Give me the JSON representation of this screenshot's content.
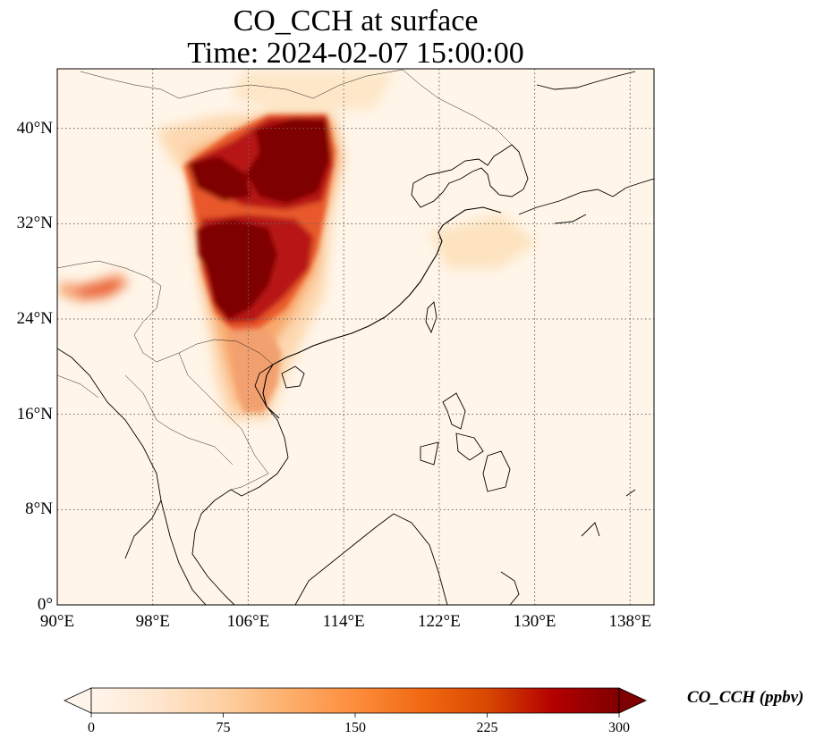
{
  "title_line_1": "CO_CCH at surface",
  "title_line_2": "Time: 2024-02-07 15:00:00",
  "map": {
    "extent_lon": [
      90,
      140
    ],
    "extent_lat": [
      0,
      45
    ],
    "gridlines": "dotted",
    "x_ticks": [
      {
        "lon": 90,
        "label": "90°E"
      },
      {
        "lon": 98,
        "label": "98°E"
      },
      {
        "lon": 106,
        "label": "106°E"
      },
      {
        "lon": 114,
        "label": "114°E"
      },
      {
        "lon": 122,
        "label": "122°E"
      },
      {
        "lon": 130,
        "label": "130°E"
      },
      {
        "lon": 138,
        "label": "138°E"
      }
    ],
    "y_ticks": [
      {
        "lat": 0,
        "label": "0°"
      },
      {
        "lat": 8,
        "label": "8°N"
      },
      {
        "lat": 16,
        "label": "16°N"
      },
      {
        "lat": 24,
        "label": "24°N"
      },
      {
        "lat": 32,
        "label": "32°N"
      },
      {
        "lat": 40,
        "label": "40°N"
      }
    ],
    "field_colors": {
      "background": "#fff5e8",
      "light": "#fde0bd",
      "mid": "#f9a865",
      "orange": "#e8582b",
      "red": "#b81412",
      "dark": "#7f0000"
    }
  },
  "colorbar": {
    "label": "CO_CCH (ppbv)",
    "min": 0,
    "max": 300,
    "extend": "both",
    "ticks": [
      {
        "value": 0,
        "label": "0"
      },
      {
        "value": 75,
        "label": "75"
      },
      {
        "value": 150,
        "label": "150"
      },
      {
        "value": 225,
        "label": "225"
      },
      {
        "value": 300,
        "label": "300"
      }
    ],
    "colormap": [
      "#fff5eb",
      "#fee6ce",
      "#fdd0a2",
      "#fdae6b",
      "#fd8d3c",
      "#f16913",
      "#d94801",
      "#b30000",
      "#7f0000"
    ]
  }
}
